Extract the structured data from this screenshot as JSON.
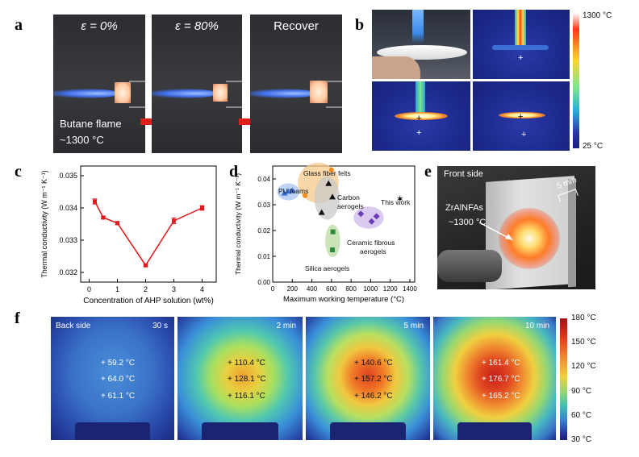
{
  "panels": {
    "a": {
      "label": "a",
      "frames": [
        {
          "caption": "ε = 0%"
        },
        {
          "caption": "ε = 80%"
        },
        {
          "caption": "Recover"
        }
      ],
      "flame_text_1": "Butane flame",
      "flame_text_2": "~1300 °C",
      "colors": {
        "background": "#3a3c40",
        "flame": "#4a78ff",
        "glow": "#ffd6a6",
        "arrow": "#e0201a"
      }
    },
    "b": {
      "label": "b",
      "colorbar_max": "1300 °C",
      "colorbar_min": "25 °C",
      "colors": {
        "ir_background": "#1c2a8c"
      }
    },
    "c": {
      "label": "c",
      "chart_data": {
        "type": "line",
        "x": [
          0.2,
          0.5,
          1,
          2,
          3,
          4
        ],
        "y": [
          0.0342,
          0.0337,
          0.03353,
          0.03222,
          0.0336,
          0.034
        ],
        "err": [
          8e-05,
          4e-05,
          5e-05,
          3e-05,
          9e-05,
          7e-05
        ],
        "xlabel": "Concentration of AHP solution (wt%)",
        "ylabel": "Thermal conductivity (W m⁻¹ K⁻¹)",
        "xlim": [
          -0.3,
          4.5
        ],
        "ylim": [
          0.0317,
          0.0353
        ],
        "xticks": [
          "0",
          "1",
          "2",
          "3",
          "4"
        ],
        "yticks": [
          "0.032",
          "0.033",
          "0.034",
          "0.035"
        ],
        "color": "#e31a1c"
      }
    },
    "d": {
      "label": "d",
      "chart_data": {
        "type": "scatter",
        "xlabel": "Maximum working temperature (°C)",
        "ylabel": "Thermal conductivity (W m⁻¹ K⁻¹)",
        "xlim": [
          0,
          1450
        ],
        "ylim": [
          0,
          0.045
        ],
        "xticks": [
          "0",
          "200",
          "400",
          "600",
          "800",
          "1000",
          "1200",
          "1400"
        ],
        "yticks": [
          "0.00",
          "0.01",
          "0.02",
          "0.03",
          "0.04"
        ],
        "groups": [
          {
            "name": "PU foams",
            "marker": "triangle",
            "color": "#3a6fd8",
            "fill": "#a9c6f2",
            "points": [
              [
                120,
                0.0345
              ],
              [
                160,
                0.0352
              ],
              [
                200,
                0.0355
              ]
            ]
          },
          {
            "name": "Glass fiber felts",
            "marker": "circle",
            "color": "#ef8a1e",
            "fill": "#f7c98c",
            "points": [
              [
                330,
                0.0335
              ],
              [
                600,
                0.0435
              ]
            ]
          },
          {
            "name": "Carbon aerogels",
            "marker": "triangle",
            "color": "#111111",
            "fill": "#c9c9c9",
            "points": [
              [
                500,
                0.027
              ],
              [
                570,
                0.0382
              ],
              [
                610,
                0.033
              ]
            ]
          },
          {
            "name": "Silica aerogels",
            "marker": "square",
            "color": "#2e8b3b",
            "fill": "#b9dba1",
            "points": [
              [
                610,
                0.0125
              ],
              [
                615,
                0.0195
              ]
            ]
          },
          {
            "name": "Ceramic fibrous aerogels",
            "marker": "diamond",
            "color": "#6a3db8",
            "fill": "#cdb8ea",
            "points": [
              [
                900,
                0.0265
              ],
              [
                1010,
                0.0235
              ],
              [
                1060,
                0.0255
              ]
            ]
          },
          {
            "name": "This work",
            "marker": "star",
            "color": "#000000",
            "fill": "none",
            "points": [
              [
                1300,
                0.0322
              ]
            ]
          }
        ]
      }
    },
    "e": {
      "label": "e",
      "front_side": "Front side",
      "thickness": "5 mm",
      "material": "ZrAlNFAs",
      "temperature": "~1300 °C"
    },
    "f": {
      "label": "f",
      "back_side": "Back side",
      "frames": [
        {
          "time": "30 s",
          "temps": [
            "+ 59.2 °C",
            "+ 64.0 °C",
            "+ 61.1 °C"
          ]
        },
        {
          "time": "2 min",
          "temps": [
            "+ 110.4 °C",
            "+ 128.1 °C",
            "+ 116.1 °C"
          ]
        },
        {
          "time": "5 min",
          "temps": [
            "+ 140.6 °C",
            "+ 157.2 °C",
            "+ 146.2 °C"
          ]
        },
        {
          "time": "10 min",
          "temps": [
            "+ 161.4 °C",
            "+ 176.7 °C",
            "+ 165.2 °C"
          ]
        }
      ],
      "colorbar_ticks": [
        "180 °C",
        "150 °C",
        "120 °C",
        "90 °C",
        "60 °C",
        "30 °C"
      ]
    }
  }
}
